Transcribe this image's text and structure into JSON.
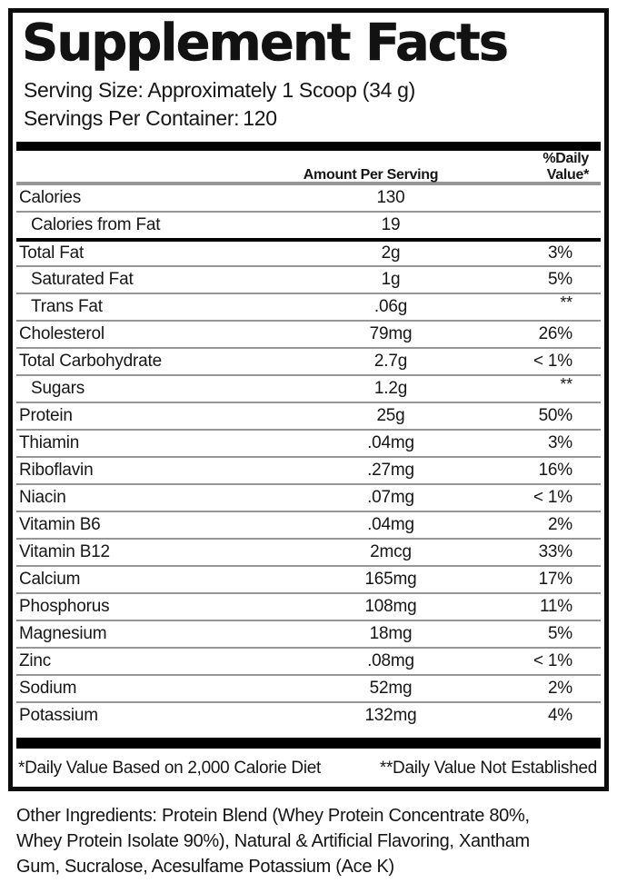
{
  "label": {
    "title": "Supplement Facts",
    "serving_size_line": "Serving Size: Approximately 1 Scoop (34 g)",
    "servings_per_container_label": "Servings Per Container:",
    "servings_per_container_value": "120",
    "columns": {
      "amount": "Amount Per Serving",
      "daily_value": "%Daily Value*"
    },
    "rows": [
      {
        "name": "Calories",
        "amount": "130",
        "dv": ""
      },
      {
        "name": "Calories from Fat",
        "amount": "19",
        "dv": ""
      },
      {
        "name": "Total Fat",
        "amount": "2g",
        "dv": "3%"
      },
      {
        "name": "Saturated Fat",
        "amount": "1g",
        "dv": "5%"
      },
      {
        "name": "Trans Fat",
        "amount": ".06g",
        "dv": "**"
      },
      {
        "name": "Cholesterol",
        "amount": "79mg",
        "dv": "26%"
      },
      {
        "name": "Total Carbohydrate",
        "amount": "2.7g",
        "dv": "< 1%"
      },
      {
        "name": "Sugars",
        "amount": "1.2g",
        "dv": "**"
      },
      {
        "name": "Protein",
        "amount": "25g",
        "dv": "50%"
      },
      {
        "name": "Thiamin",
        "amount": ".04mg",
        "dv": "3%"
      },
      {
        "name": "Riboflavin",
        "amount": ".27mg",
        "dv": "16%"
      },
      {
        "name": "Niacin",
        "amount": ".07mg",
        "dv": "< 1%"
      },
      {
        "name": "Vitamin B6",
        "amount": ".04mg",
        "dv": "2%"
      },
      {
        "name": "Vitamin B12",
        "amount": "2mcg",
        "dv": "33%"
      },
      {
        "name": "Calcium",
        "amount": "165mg",
        "dv": "17%"
      },
      {
        "name": "Phosphorus",
        "amount": "108mg",
        "dv": "11%"
      },
      {
        "name": "Magnesium",
        "amount": "18mg",
        "dv": "5%"
      },
      {
        "name": "Zinc",
        "amount": ".08mg",
        "dv": "< 1%"
      },
      {
        "name": "Sodium",
        "amount": "52mg",
        "dv": "2%"
      },
      {
        "name": "Potassium",
        "amount": "132mg",
        "dv": "4%"
      }
    ],
    "footnotes": {
      "daily_value_basis": "*Daily Value Based on 2,000 Calorie Diet",
      "not_established": "**Daily Value Not Established"
    }
  },
  "other_ingredients": {
    "lines": [
      "Other Ingredients: Protein Blend (Whey Protein Concentrate 80%,",
      "Whey Protein Isolate 90%), Natural & Artificial Flavoring, Xantham",
      "Gum, Sucralose, Acesulfame Potassium (Ace K)"
    ]
  },
  "colors": {
    "text": "#161616",
    "thin_line": "#969696",
    "thick_bar": "#000000",
    "background": "#ffffff"
  }
}
